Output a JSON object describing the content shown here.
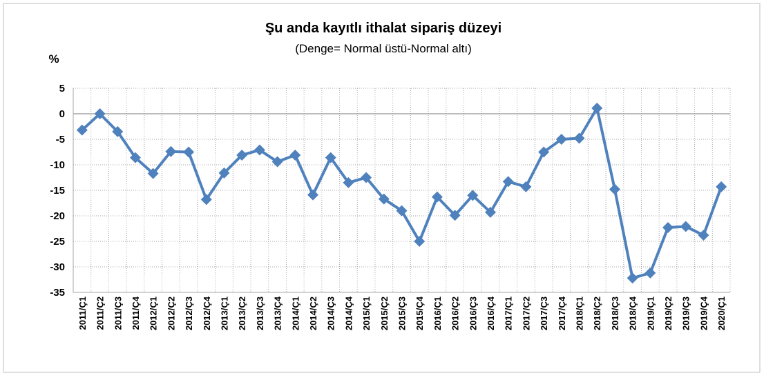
{
  "chart_data": {
    "type": "line",
    "title": "Şu anda kayıtlı ithalat sipariş düzeyi",
    "subtitle": "(Denge= Normal üstü-Normal altı)",
    "y_label": "%",
    "categories": [
      "2011/Ç1",
      "2011/Ç2",
      "2011/Ç3",
      "2011/Ç4",
      "2012/Ç1",
      "2012/Ç2",
      "2012/Ç3",
      "2012/Ç4",
      "2013/Ç1",
      "2013/Ç2",
      "2013/Ç3",
      "2013/Ç4",
      "2014/Ç1",
      "2014/Ç2",
      "2014/Ç3",
      "2014/Ç4",
      "2015/Ç1",
      "2015/Ç2",
      "2015/Ç3",
      "2015/Ç4",
      "2016/Ç1",
      "2016/Ç2",
      "2016/Ç3",
      "2016/Ç4",
      "2017/Ç1",
      "2017/Ç2",
      "2017/Ç3",
      "2017/Ç4",
      "2018/Ç1",
      "2018/Ç2",
      "2018/Ç3",
      "2018/Ç4",
      "2019/Ç1",
      "2019/Ç2",
      "2019/Ç3",
      "2019/Ç4",
      "2020/Ç1"
    ],
    "values": [
      -3.2,
      0,
      -3.5,
      -8.6,
      -11.7,
      -7.4,
      -7.5,
      -16.8,
      -11.6,
      -8.1,
      -7.1,
      -9.4,
      -8.1,
      -15.9,
      -8.6,
      -13.5,
      -12.5,
      -16.7,
      -19.0,
      -25.0,
      -16.3,
      -19.9,
      -16.0,
      -19.3,
      -13.3,
      -14.3,
      -7.5,
      -5.0,
      -4.8,
      1.1,
      -14.8,
      -32.2,
      -31.2,
      -22.3,
      -22.1,
      -23.8,
      -14.3
    ],
    "color": "#4f81bd",
    "ylim": [
      -35,
      5
    ],
    "yticks": [
      -35,
      -30,
      -25,
      -20,
      -15,
      -10,
      -5,
      0,
      5
    ],
    "grid": true
  }
}
